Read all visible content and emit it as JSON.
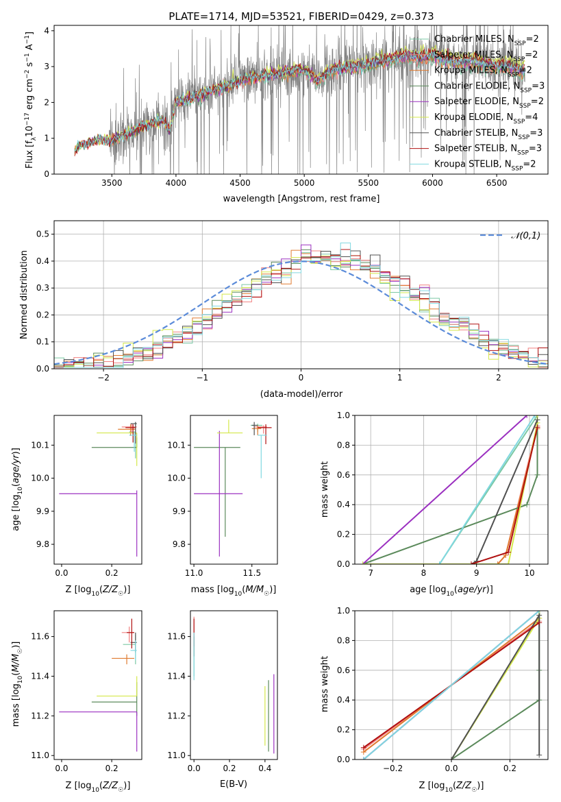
{
  "figure_title": "PLATE=1714, MJD=53521, FIBERID=0429, z=0.373",
  "models": [
    {
      "label": "Chabrier MILES, N_SSP=2",
      "color": "#7bc8a4"
    },
    {
      "label": "Salpeter MILES, N_SSP=2",
      "color": "#f08080"
    },
    {
      "label": "Kroupa MILES, N_SSP=2",
      "color": "#e07b30"
    },
    {
      "label": "Chabrier ELODIE, N_SSP=3",
      "color": "#5b8a5b"
    },
    {
      "label": "Salpeter ELODIE, N_SSP=2",
      "color": "#9b30c0"
    },
    {
      "label": "Kroupa ELODIE, N_SSP=4",
      "color": "#d4e84a"
    },
    {
      "label": "Chabrier STELIB, N_SSP=3",
      "color": "#505050"
    },
    {
      "label": "Salpeter STELIB, N_SSP=3",
      "color": "#b01010"
    },
    {
      "label": "Kroupa STELIB, N_SSP=2",
      "color": "#80d8e0"
    }
  ],
  "chart_data": [
    {
      "type": "line",
      "id": "spectrum",
      "xlabel": "wavelength [Angstrom, rest frame]",
      "ylabel": "Flux [f_λ 10^-17 erg cm^-2 s^-1 A^-1]",
      "xlim": [
        3050,
        6900
      ],
      "ylim": [
        0,
        4.15
      ],
      "xticks": [
        3500,
        4000,
        4500,
        5000,
        5500,
        6000,
        6500
      ],
      "yticks": [
        0,
        1,
        2,
        3,
        4
      ],
      "data_color": "#808080",
      "continuum": {
        "x": [
          3210,
          3230,
          3300,
          3400,
          3500,
          3600,
          3700,
          3800,
          3900,
          3950,
          4000,
          4100,
          4200,
          4300,
          4400,
          4500,
          4600,
          4700,
          4800,
          4900,
          5000,
          5100,
          5200,
          5300,
          5400,
          5500,
          5600,
          5700,
          5800,
          5900,
          6000,
          6100,
          6200,
          6300,
          6400,
          6500,
          6600,
          6700
        ],
        "y": [
          0.6,
          0.75,
          0.85,
          0.95,
          0.95,
          1.1,
          1.25,
          1.4,
          1.5,
          1.2,
          2.0,
          2.1,
          2.2,
          2.35,
          2.45,
          2.6,
          2.7,
          2.75,
          2.8,
          2.85,
          2.9,
          2.6,
          2.9,
          2.95,
          3.0,
          3.05,
          3.15,
          3.2,
          3.3,
          3.25,
          3.3,
          3.2,
          3.1,
          3.15,
          3.05,
          3.0,
          3.0,
          2.85
        ]
      },
      "data_spectrum_range": [
        3210,
        6720
      ],
      "legend": "upper right"
    },
    {
      "type": "step",
      "id": "residuals",
      "xlabel": "(data-model)/error",
      "ylabel": "Normed distribution",
      "xlim": [
        -2.5,
        2.5
      ],
      "ylim": [
        0,
        0.55
      ],
      "xticks": [
        -2,
        -1,
        0,
        1,
        2
      ],
      "yticks": [
        0.0,
        0.1,
        0.2,
        0.3,
        0.4,
        0.5
      ],
      "grid": true,
      "bins": [
        -2.5,
        2.5,
        50
      ],
      "reference": {
        "label": "𝒩(0,1)",
        "mu": 0,
        "sigma": 1,
        "color": "#5b8bd9",
        "dashed": true
      },
      "legend": "upper right"
    },
    {
      "type": "errorbar",
      "id": "age-vs-Z",
      "xlabel": "Z [log10(Z/Z☉)]",
      "ylabel": "age [log10(age/yr)]",
      "xlim": [
        -0.03,
        0.32
      ],
      "ylim": [
        9.74,
        10.19
      ],
      "xticks": [
        0.0,
        0.2
      ],
      "yticks": [
        9.8,
        9.9,
        10.0,
        10.1
      ],
      "points": [
        {
          "m": 0,
          "x": 0.295,
          "y": 10.14,
          "xerr": [
            0.025,
            0.0
          ],
          "yerr": [
            0.08,
            0.03
          ]
        },
        {
          "m": 1,
          "x": 0.28,
          "y": 10.155,
          "xerr": [
            0.04,
            0.02
          ],
          "yerr": [
            0.02,
            0.01
          ]
        },
        {
          "m": 2,
          "x": 0.275,
          "y": 10.148,
          "xerr": [
            0.05,
            0.02
          ],
          "yerr": [
            0.02,
            0.015
          ]
        },
        {
          "m": 3,
          "x": 0.3,
          "y": 10.093,
          "xerr": [
            0.18,
            0.0
          ],
          "yerr": [
            0.0,
            0.03
          ]
        },
        {
          "m": 4,
          "x": 0.3,
          "y": 9.953,
          "xerr": [
            0.31,
            0.0
          ],
          "yerr": [
            0.19,
            0.01
          ]
        },
        {
          "m": 5,
          "x": 0.3,
          "y": 10.137,
          "xerr": [
            0.16,
            0.0
          ],
          "yerr": [
            0.1,
            0.0
          ]
        },
        {
          "m": 6,
          "x": 0.295,
          "y": 10.165,
          "xerr": [
            0.02,
            0.005
          ],
          "yerr": [
            0.06,
            0.005
          ]
        },
        {
          "m": 7,
          "x": 0.285,
          "y": 10.153,
          "xerr": [
            0.03,
            0.01
          ],
          "yerr": [
            0.045,
            0.01
          ]
        },
        {
          "m": 8,
          "x": 0.29,
          "y": 10.13,
          "xerr": [
            0.02,
            0.01
          ],
          "yerr": [
            0.05,
            0.01
          ]
        }
      ]
    },
    {
      "type": "errorbar",
      "id": "age-vs-mass",
      "xlabel": "mass [log10(M/M☉)]",
      "ylabel": "",
      "xlim": [
        10.97,
        11.72
      ],
      "ylim": [
        9.74,
        10.19
      ],
      "xticks": [
        11.0,
        11.5
      ],
      "yticks": [
        9.8,
        9.9,
        10.0,
        10.1
      ],
      "points": [
        {
          "m": 0,
          "x": 11.55,
          "y": 10.16,
          "xerr": [
            0.06,
            0.04
          ],
          "yerr": [
            0.02,
            0.005
          ]
        },
        {
          "m": 1,
          "x": 11.6,
          "y": 10.155,
          "xerr": [
            0.08,
            0.03
          ],
          "yerr": [
            0.02,
            0.005
          ]
        },
        {
          "m": 2,
          "x": 11.55,
          "y": 10.15,
          "xerr": [
            0.05,
            0.03
          ],
          "yerr": [
            0.02,
            0.01
          ]
        },
        {
          "m": 3,
          "x": 11.27,
          "y": 10.093,
          "xerr": [
            0.27,
            0.13
          ],
          "yerr": [
            0.27,
            0.0
          ]
        },
        {
          "m": 4,
          "x": 11.22,
          "y": 9.953,
          "xerr": [
            0.22,
            0.2
          ],
          "yerr": [
            0.19,
            0.19
          ]
        },
        {
          "m": 5,
          "x": 11.3,
          "y": 10.137,
          "xerr": [
            0.1,
            0.12
          ],
          "yerr": [
            0.0,
            0.04
          ]
        },
        {
          "m": 6,
          "x": 11.52,
          "y": 10.16,
          "xerr": [
            0.02,
            0.03
          ],
          "yerr": [
            0.03,
            0.01
          ]
        },
        {
          "m": 7,
          "x": 11.62,
          "y": 10.153,
          "xerr": [
            0.07,
            0.05
          ],
          "yerr": [
            0.05,
            0.01
          ]
        },
        {
          "m": 8,
          "x": 11.58,
          "y": 10.13,
          "xerr": [
            0.03,
            0.05
          ],
          "yerr": [
            0.13,
            0.0
          ]
        }
      ]
    },
    {
      "type": "line",
      "id": "weight-vs-age",
      "xlabel": "age [log10(age/yr)]",
      "ylabel": "mass weight",
      "xlim": [
        6.7,
        10.35
      ],
      "ylim": [
        0,
        1
      ],
      "xticks": [
        7,
        8,
        9,
        10
      ],
      "yticks": [
        0.0,
        0.2,
        0.4,
        0.6,
        0.8,
        1.0
      ],
      "grid": true,
      "series": [
        {
          "m": 0,
          "x": [
            8.3,
            10.15
          ],
          "y": [
            0.0,
            1.0
          ]
        },
        {
          "m": 1,
          "x": [
            9.4,
            9.55,
            10.15
          ],
          "y": [
            0.0,
            0.06,
            0.93
          ]
        },
        {
          "m": 2,
          "x": [
            9.4,
            9.55,
            10.15
          ],
          "y": [
            0.0,
            0.06,
            0.91
          ]
        },
        {
          "m": 3,
          "x": [
            6.85,
            9.95,
            10.15,
            10.15
          ],
          "y": [
            0.0,
            0.4,
            0.6,
            1.0
          ]
        },
        {
          "m": 4,
          "x": [
            6.85,
            9.95
          ],
          "y": [
            0.0,
            1.0
          ]
        },
        {
          "m": 5,
          "x": [
            6.85,
            9.6,
            10.15,
            10.15
          ],
          "y": [
            0.0,
            0.0,
            0.95,
            1.0
          ]
        },
        {
          "m": 6,
          "x": [
            8.9,
            9.0,
            10.15
          ],
          "y": [
            0.0,
            0.02,
            0.97
          ]
        },
        {
          "m": 7,
          "x": [
            8.9,
            9.6,
            10.15
          ],
          "y": [
            0.0,
            0.08,
            0.92
          ]
        },
        {
          "m": 8,
          "x": [
            8.3,
            10.1
          ],
          "y": [
            0.0,
            1.0
          ]
        }
      ]
    },
    {
      "type": "errorbar",
      "id": "mass-vs-Z",
      "xlabel": "Z [log10(Z/Z☉)]",
      "ylabel": "mass [log10(M/M☉)]",
      "xlim": [
        -0.03,
        0.32
      ],
      "ylim": [
        10.98,
        11.73
      ],
      "xticks": [
        0.0,
        0.2
      ],
      "yticks": [
        11.0,
        11.2,
        11.4,
        11.6
      ],
      "points": [
        {
          "m": 0,
          "x": 0.295,
          "y": 11.56,
          "xerr": [
            0.05,
            0.0
          ],
          "yerr": [
            0.1,
            0.05
          ]
        },
        {
          "m": 1,
          "x": 0.27,
          "y": 11.62,
          "xerr": [
            0.03,
            0.02
          ],
          "yerr": [
            0.05,
            0.03
          ]
        },
        {
          "m": 2,
          "x": 0.26,
          "y": 11.49,
          "xerr": [
            0.06,
            0.03
          ],
          "yerr": [
            0.03,
            0.02
          ]
        },
        {
          "m": 3,
          "x": 0.3,
          "y": 11.27,
          "xerr": [
            0.18,
            0.0
          ],
          "yerr": [
            0.07,
            0.1
          ]
        },
        {
          "m": 4,
          "x": 0.3,
          "y": 11.22,
          "xerr": [
            0.31,
            0.0
          ],
          "yerr": [
            0.2,
            0.0
          ]
        },
        {
          "m": 5,
          "x": 0.3,
          "y": 11.3,
          "xerr": [
            0.16,
            0.0
          ],
          "yerr": [
            0.0,
            0.1
          ]
        },
        {
          "m": 6,
          "x": 0.295,
          "y": 11.57,
          "xerr": [
            0.02,
            0.005
          ],
          "yerr": [
            0.05,
            0.05
          ]
        },
        {
          "m": 7,
          "x": 0.28,
          "y": 11.62,
          "xerr": [
            0.02,
            0.01
          ],
          "yerr": [
            0.08,
            0.07
          ]
        },
        {
          "m": 8,
          "x": 0.295,
          "y": 11.53,
          "xerr": [
            0.02,
            0.005
          ],
          "yerr": [
            0.05,
            0.05
          ]
        }
      ]
    },
    {
      "type": "errorbar",
      "id": "mass-vs-EBV",
      "xlabel": "E(B-V)",
      "ylabel": "",
      "xlim": [
        -0.02,
        0.47
      ],
      "ylim": [
        10.98,
        11.73
      ],
      "xticks": [
        0.0,
        0.2,
        0.4
      ],
      "yticks": [
        11.0,
        11.2,
        11.4,
        11.6
      ],
      "points": [
        {
          "m": 0,
          "x": 0.0,
          "y": 11.5,
          "xerr": [
            0,
            0
          ],
          "yerr": [
            0.1,
            0.1
          ]
        },
        {
          "m": 1,
          "x": 0.0,
          "y": 11.6,
          "xerr": [
            0,
            0
          ],
          "yerr": [
            0.05,
            0.1
          ]
        },
        {
          "m": 2,
          "x": 0.0,
          "y": 11.55,
          "xerr": [
            0,
            0
          ],
          "yerr": [
            0.05,
            0.05
          ]
        },
        {
          "m": 3,
          "x": 0.42,
          "y": 11.2,
          "xerr": [
            0,
            0
          ],
          "yerr": [
            0.18,
            0.18
          ]
        },
        {
          "m": 4,
          "x": 0.45,
          "y": 11.21,
          "xerr": [
            0,
            0
          ],
          "yerr": [
            0.2,
            0.2
          ]
        },
        {
          "m": 5,
          "x": 0.4,
          "y": 11.2,
          "xerr": [
            0,
            0
          ],
          "yerr": [
            0.15,
            0.15
          ]
        },
        {
          "m": 6,
          "x": 0.0,
          "y": 11.55,
          "xerr": [
            0,
            0
          ],
          "yerr": [
            0.05,
            0.05
          ]
        },
        {
          "m": 7,
          "x": 0.0,
          "y": 11.62,
          "xerr": [
            0,
            0
          ],
          "yerr": [
            0.07,
            0.07
          ]
        },
        {
          "m": 8,
          "x": 0.0,
          "y": 11.5,
          "xerr": [
            0,
            0
          ],
          "yerr": [
            0.12,
            0.12
          ]
        }
      ]
    },
    {
      "type": "line",
      "id": "weight-vs-Z",
      "xlabel": "Z [log10(Z/Z☉)]",
      "ylabel": "mass weight",
      "xlim": [
        -0.33,
        0.33
      ],
      "ylim": [
        0,
        1
      ],
      "xticks": [
        -0.2,
        0.0,
        0.2
      ],
      "yticks": [
        0.0,
        0.2,
        0.4,
        0.6,
        0.8,
        1.0
      ],
      "grid": true,
      "series": [
        {
          "m": 0,
          "x": [
            -0.3,
            0.3
          ],
          "y": [
            0.0,
            1.0
          ]
        },
        {
          "m": 1,
          "x": [
            -0.3,
            0.3
          ],
          "y": [
            0.07,
            0.93
          ]
        },
        {
          "m": 2,
          "x": [
            -0.3,
            0.3
          ],
          "y": [
            0.05,
            0.95
          ]
        },
        {
          "m": 3,
          "x": [
            0.0,
            0.3,
            0.3,
            0.3
          ],
          "y": [
            0.0,
            0.4,
            0.6,
            1.0
          ]
        },
        {
          "m": 4,
          "x": [
            -0.3,
            0.3
          ],
          "y": [
            0.0,
            1.0
          ]
        },
        {
          "m": 5,
          "x": [
            0.0,
            0.3,
            0.3
          ],
          "y": [
            0.0,
            0.95,
            1.0
          ]
        },
        {
          "m": 6,
          "x": [
            0.0,
            0.3,
            0.3
          ],
          "y": [
            0.0,
            0.97,
            0.03
          ]
        },
        {
          "m": 7,
          "x": [
            -0.3,
            0.3
          ],
          "y": [
            0.08,
            0.92
          ]
        },
        {
          "m": 8,
          "x": [
            -0.3,
            0.3
          ],
          "y": [
            0.0,
            1.0
          ]
        }
      ]
    }
  ]
}
